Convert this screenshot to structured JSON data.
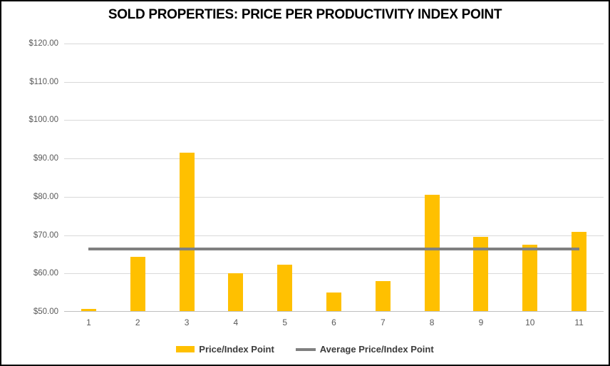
{
  "title": "SOLD PROPERTIES: PRICE PER PRODUCTIVITY INDEX POINT",
  "chart_data": {
    "type": "bar",
    "title": "SOLD PROPERTIES: PRICE PER PRODUCTIVITY INDEX POINT",
    "categories": [
      "1",
      "2",
      "3",
      "4",
      "5",
      "6",
      "7",
      "8",
      "9",
      "10",
      "11"
    ],
    "series": [
      {
        "name": "Price/Index Point",
        "type": "bar",
        "color": "#FFC000",
        "values": [
          50.8,
          64.3,
          91.5,
          60.0,
          62.2,
          55.0,
          58.0,
          80.6,
          69.5,
          67.5,
          70.8
        ]
      },
      {
        "name": "Average Price/Index Point",
        "type": "line",
        "color": "#808080",
        "value": 66.4
      }
    ],
    "xlabel": "",
    "ylabel": "",
    "ylim": [
      50,
      120
    ],
    "ytick_step": 10,
    "ytick_prefix": "$",
    "ytick_decimals": 2,
    "grid": true,
    "legend_position": "bottom",
    "colors": {
      "gridline": "#D9D9D9",
      "axis_line": "#BFBFBF",
      "tick_text": "#595959",
      "border": "#000000",
      "background": "#FFFFFF"
    }
  }
}
